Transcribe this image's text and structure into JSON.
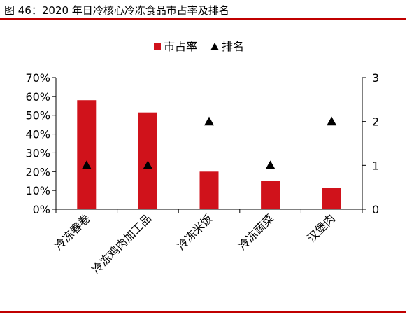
{
  "figure": {
    "title_label": "图 46：",
    "title_text": "2020 年日冷核心冷冻食品市占率及排名"
  },
  "colors": {
    "bar": "#d0121b",
    "marker": "#000000",
    "accent_rule": "#c00000",
    "axis": "#000000"
  },
  "chart_data": {
    "type": "bar",
    "categories": [
      "冷冻春卷",
      "冷冻鸡肉加工品",
      "冷冻米饭",
      "冷冻蔬菜",
      "汉堡肉"
    ],
    "series": [
      {
        "name": "市占率",
        "type": "bar",
        "axis": "left",
        "values": [
          58,
          51.5,
          20,
          15,
          11.5
        ],
        "unit": "%"
      },
      {
        "name": "排名",
        "type": "scatter",
        "marker": "triangle-icon",
        "axis": "right",
        "values": [
          1,
          1,
          2,
          1,
          2
        ]
      }
    ],
    "ylim": [
      0,
      70
    ],
    "y_ticks": [
      "0%",
      "10%",
      "20%",
      "30%",
      "40%",
      "50%",
      "60%",
      "70%"
    ],
    "y2lim": [
      0,
      3
    ],
    "y2_ticks": [
      "0",
      "1",
      "2",
      "3"
    ],
    "legend": {
      "position": "top-right",
      "entries": [
        "市占率",
        "排名"
      ]
    },
    "grid": false,
    "title": "",
    "xlabel": "",
    "ylabel": ""
  }
}
